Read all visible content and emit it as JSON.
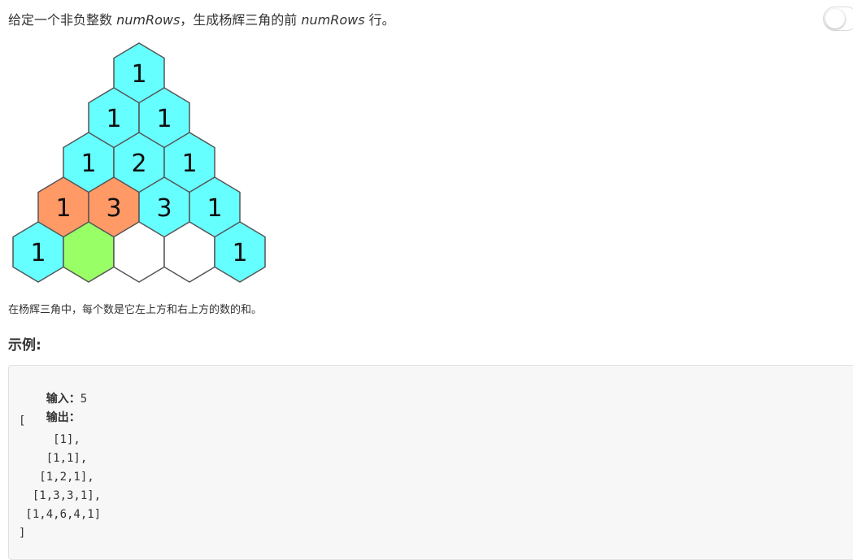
{
  "problem": {
    "prefix": "给定一个非负整数 ",
    "var1": "numRows",
    "middle": "，生成杨辉三角的前 ",
    "var2": "numRows",
    "suffix": " 行。"
  },
  "toggle": {
    "state": "off"
  },
  "colors": {
    "cyan": "#66FFFF",
    "orange": "#FF9966",
    "green": "#99FF66",
    "white": "#FFFFFF"
  },
  "triangle": {
    "rows": [
      [
        {
          "label": "1",
          "color": "cyan"
        }
      ],
      [
        {
          "label": "1",
          "color": "cyan"
        },
        {
          "label": "1",
          "color": "cyan"
        }
      ],
      [
        {
          "label": "1",
          "color": "cyan"
        },
        {
          "label": "2",
          "color": "cyan"
        },
        {
          "label": "1",
          "color": "cyan"
        }
      ],
      [
        {
          "label": "1",
          "color": "orange"
        },
        {
          "label": "3",
          "color": "orange"
        },
        {
          "label": "3",
          "color": "cyan"
        },
        {
          "label": "1",
          "color": "cyan"
        }
      ],
      [
        {
          "label": "1",
          "color": "cyan"
        },
        {
          "label": "",
          "color": "green"
        },
        {
          "label": "",
          "color": "white"
        },
        {
          "label": "",
          "color": "white"
        },
        {
          "label": "1",
          "color": "cyan"
        }
      ]
    ]
  },
  "caption": "在杨辉三角中，每个数是它左上方和右上方的数的和。",
  "section_title": "示例:",
  "example": {
    "input_label": "输入：",
    "input_value": "5",
    "output_label": "输出：",
    "output_lines": [
      "[",
      "     [1],",
      "    [1,1],",
      "   [1,2,1],",
      "  [1,3,3,1],",
      " [1,4,6,4,1]",
      "]"
    ]
  }
}
